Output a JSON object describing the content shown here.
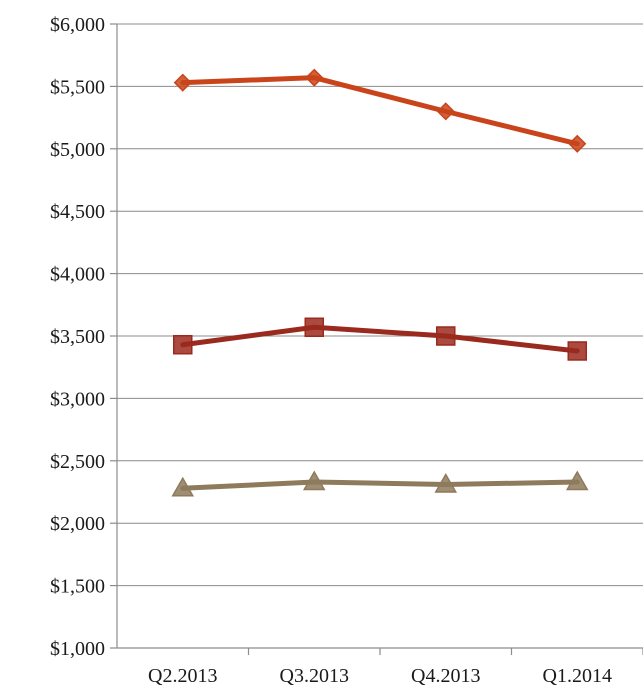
{
  "chart_data": {
    "type": "line",
    "categories": [
      "Q2.2013",
      "Q3.2013",
      "Q4.2013",
      "Q1.2014"
    ],
    "series": [
      {
        "values": [
          5530,
          5570,
          5300,
          5040
        ],
        "color": "#c9441a",
        "marker": "diamond"
      },
      {
        "values": [
          3430,
          3570,
          3500,
          3380
        ],
        "color": "#9b2a1e",
        "marker": "square"
      },
      {
        "values": [
          2280,
          2330,
          2310,
          2330
        ],
        "color": "#8e7a5c",
        "marker": "triangle"
      }
    ],
    "y_ticks": [
      "$1,000",
      "$1,500",
      "$2,000",
      "$2,500",
      "$3,000",
      "$3,500",
      "$4,000",
      "$4,500",
      "$5,000",
      "$5,500",
      "$6,000"
    ],
    "y_tick_values": [
      1000,
      1500,
      2000,
      2500,
      3000,
      3500,
      4000,
      4500,
      5000,
      5500,
      6000
    ],
    "ylim": [
      1000,
      6000
    ],
    "grid": true,
    "legend": "none",
    "title": "",
    "xlabel": "",
    "ylabel": ""
  }
}
